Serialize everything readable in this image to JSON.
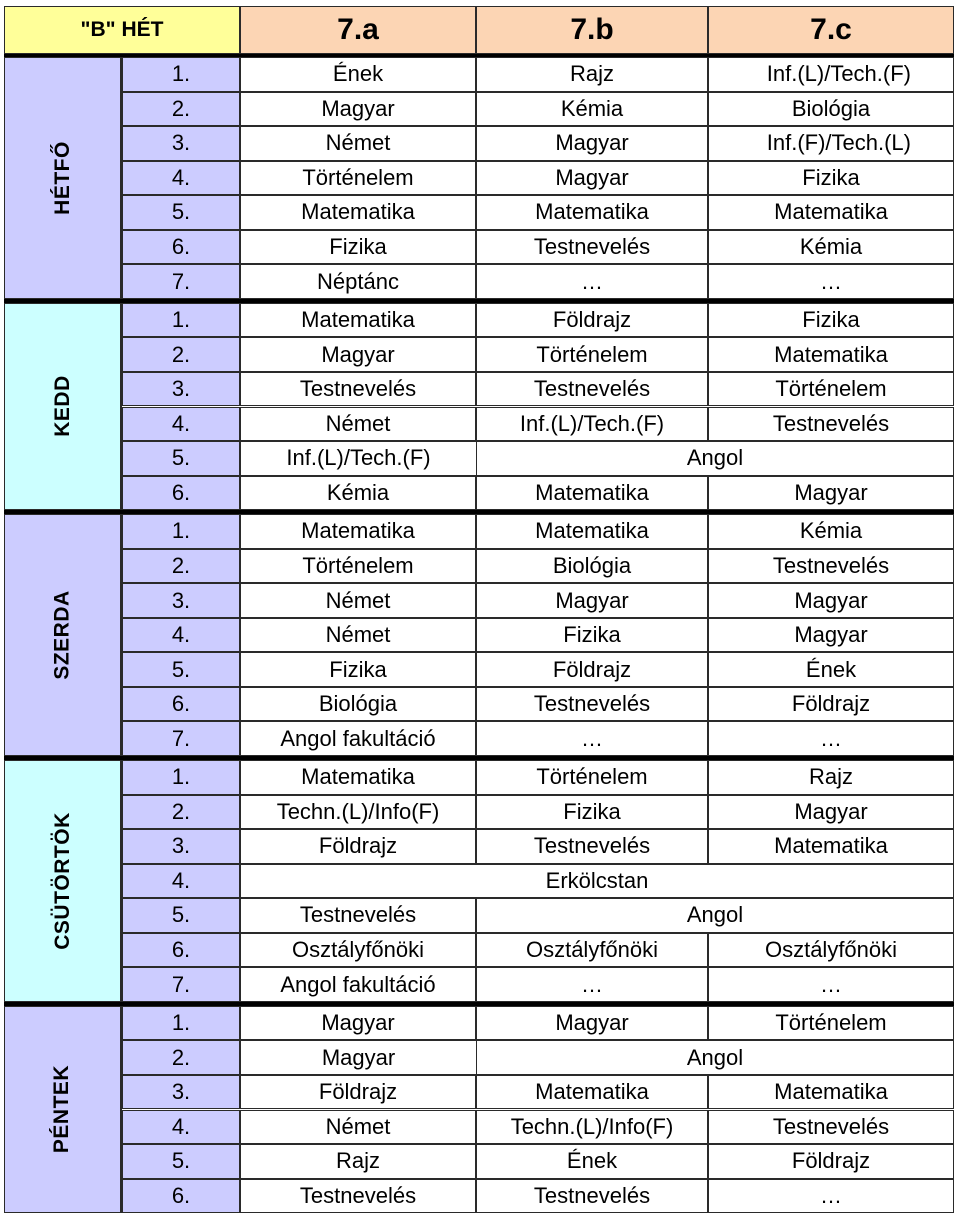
{
  "header": {
    "week_label": "\"B\" HÉT",
    "classes": [
      "7.a",
      "7.b",
      "7.c"
    ]
  },
  "colors": {
    "header_class_bg": "#fcd5b4",
    "header_week_bg": "#ffff99",
    "period_bg": "#ccccff",
    "day_colors": [
      "#ccccff",
      "#ccffff",
      "#ccccff",
      "#ccffff",
      "#ccccff"
    ]
  },
  "days": [
    {
      "name": "HÉTFŐ",
      "rows": [
        {
          "period": "1.",
          "cells": [
            "Ének",
            "Rajz",
            "Inf.(L)/Tech.(F)"
          ],
          "align": [
            "c",
            "c",
            "r"
          ]
        },
        {
          "period": "2.",
          "cells": [
            "Magyar",
            "Kémia",
            "Biológia"
          ]
        },
        {
          "period": "3.",
          "cells": [
            "Német",
            "Magyar",
            "Inf.(F)/Tech.(L)"
          ],
          "align": [
            "c",
            "c",
            "r"
          ]
        },
        {
          "period": "4.",
          "cells": [
            "Történelem",
            "Magyar",
            "Fizika"
          ]
        },
        {
          "period": "5.",
          "cells": [
            "Matematika",
            "Matematika",
            "Matematika"
          ]
        },
        {
          "period": "6.",
          "cells": [
            "Fizika",
            "Testnevelés",
            "Kémia"
          ]
        },
        {
          "period": "7.",
          "cells": [
            "Néptánc",
            "…",
            "…"
          ]
        }
      ]
    },
    {
      "name": "KEDD",
      "rows": [
        {
          "period": "1.",
          "cells": [
            "Matematika",
            "Földrajz",
            "Fizika"
          ]
        },
        {
          "period": "2.",
          "cells": [
            "Magyar",
            "Történelem",
            "Matematika"
          ]
        },
        {
          "period": "3.",
          "cells": [
            "Testnevelés",
            "Testnevelés",
            "Történelem"
          ]
        },
        {
          "period": "4.",
          "cells": [
            "Német",
            "Inf.(L)/Tech.(F)",
            "Testnevelés"
          ]
        },
        {
          "period": "5.",
          "cells": [
            "Inf.(L)/Tech.(F)",
            "Angol"
          ],
          "spans": [
            1,
            2
          ],
          "borders": [
            false
          ]
        },
        {
          "period": "6.",
          "cells": [
            "Kémia",
            "Matematika",
            "Magyar"
          ]
        }
      ]
    },
    {
      "name": "SZERDA",
      "rows": [
        {
          "period": "1.",
          "cells": [
            "Matematika",
            "Matematika",
            "Kémia"
          ]
        },
        {
          "period": "2.",
          "cells": [
            "Történelem",
            "Biológia",
            "Testnevelés"
          ]
        },
        {
          "period": "3.",
          "cells": [
            "Német",
            "Magyar",
            "Magyar"
          ]
        },
        {
          "period": "4.",
          "cells": [
            "Német",
            "Fizika",
            "Magyar"
          ]
        },
        {
          "period": "5.",
          "cells": [
            "Fizika",
            "Földrajz",
            "Ének"
          ]
        },
        {
          "period": "6.",
          "cells": [
            "Biológia",
            "Testnevelés",
            "Földrajz"
          ]
        },
        {
          "period": "7.",
          "cells": [
            "Angol fakultáció",
            "…",
            "…"
          ]
        }
      ]
    },
    {
      "name": "CSÜTÖRTÖK",
      "rows": [
        {
          "period": "1.",
          "cells": [
            "Matematika",
            "Történelem",
            "Rajz"
          ]
        },
        {
          "period": "2.",
          "cells": [
            "Techn.(L)/Info(F)",
            "Fizika",
            "Magyar"
          ]
        },
        {
          "period": "3.",
          "cells": [
            "Földrajz",
            "Testnevelés",
            "Matematika"
          ]
        },
        {
          "period": "4.",
          "cells": [
            "Erkölcstan"
          ],
          "spans": [
            3
          ]
        },
        {
          "period": "5.",
          "cells": [
            "Testnevelés",
            "Angol"
          ],
          "spans": [
            1,
            2
          ]
        },
        {
          "period": "6.",
          "cells": [
            "Osztályfőnöki",
            "Osztályfőnöki",
            "Osztályfőnöki"
          ]
        },
        {
          "period": "7.",
          "cells": [
            "Angol fakultáció",
            "…",
            "…"
          ]
        }
      ]
    },
    {
      "name": "PÉNTEK",
      "rows": [
        {
          "period": "1.",
          "cells": [
            "Magyar",
            "Magyar",
            "Történelem"
          ]
        },
        {
          "period": "2.",
          "cells": [
            "Magyar",
            "Angol"
          ],
          "spans": [
            1,
            2
          ],
          "borders": [
            false
          ]
        },
        {
          "period": "3.",
          "cells": [
            "Földrajz",
            "Matematika",
            "Matematika"
          ]
        },
        {
          "period": "4.",
          "cells": [
            "Német",
            "Techn.(L)/Info(F)",
            "Testnevelés"
          ]
        },
        {
          "period": "5.",
          "cells": [
            "Rajz",
            "Ének",
            "Földrajz"
          ]
        },
        {
          "period": "6.",
          "cells": [
            "Testnevelés",
            "Testnevelés",
            "…"
          ]
        }
      ]
    }
  ]
}
